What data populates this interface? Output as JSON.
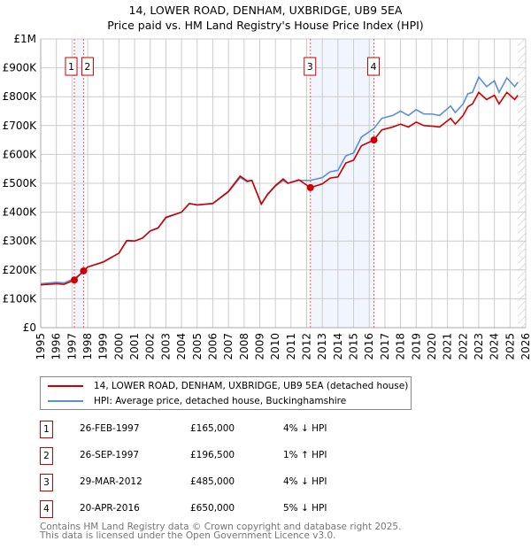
{
  "chart_data": {
    "type": "line",
    "title": "14, LOWER ROAD, DENHAM, UXBRIDGE, UB9 5EA",
    "subtitle": "Price paid vs. HM Land Registry's House Price Index (HPI)",
    "xlim": [
      1995,
      2026
    ],
    "ylim": [
      0,
      1000000
    ],
    "x_ticks": [
      "1995",
      "1996",
      "1997",
      "1998",
      "1999",
      "2000",
      "2001",
      "2002",
      "2003",
      "2004",
      "2005",
      "2006",
      "2007",
      "2008",
      "2009",
      "2010",
      "2011",
      "2012",
      "2013",
      "2014",
      "2015",
      "2016",
      "2017",
      "2018",
      "2019",
      "2020",
      "2021",
      "2022",
      "2023",
      "2024",
      "2025",
      "2026"
    ],
    "y_ticks": [
      {
        "v": 0,
        "label": "£0"
      },
      {
        "v": 100000,
        "label": "£100K"
      },
      {
        "v": 200000,
        "label": "£200K"
      },
      {
        "v": 300000,
        "label": "£300K"
      },
      {
        "v": 400000,
        "label": "£400K"
      },
      {
        "v": 500000,
        "label": "£500K"
      },
      {
        "v": 600000,
        "label": "£600K"
      },
      {
        "v": 700000,
        "label": "£700K"
      },
      {
        "v": 800000,
        "label": "£800K"
      },
      {
        "v": 900000,
        "label": "£900K"
      },
      {
        "v": 1000000,
        "label": "£1M"
      }
    ],
    "x": [
      1995,
      1996,
      1996.5,
      1997.15,
      1997.74,
      1998,
      1999,
      2000,
      2000.5,
      2001,
      2001.5,
      2002,
      2002.5,
      2003,
      2004,
      2004.5,
      2005,
      2006,
      2007,
      2007.75,
      2008.2,
      2008.5,
      2009.1,
      2009.5,
      2010,
      2010.5,
      2010.8,
      2011.5,
      2012.24,
      2013,
      2013.5,
      2014,
      2014.5,
      2015,
      2015.5,
      2016.3,
      2016.8,
      2017.5,
      2018,
      2018.5,
      2019,
      2019.5,
      2020,
      2020.5,
      2021.2,
      2021.5,
      2022,
      2022.3,
      2022.6,
      2023,
      2023.5,
      2024,
      2024.3,
      2024.8,
      2025.3,
      2025.5
    ],
    "series": [
      {
        "name": "14, LOWER ROAD, DENHAM, UXBRIDGE, UB9 5EA (detached house)",
        "color": "#cc0000",
        "values": [
          148,
          152,
          150,
          165,
          196.5,
          210,
          227,
          258,
          302,
          300,
          310,
          335,
          345,
          382,
          400,
          430,
          425,
          430,
          472,
          525,
          508,
          510,
          428,
          462,
          492,
          515,
          500,
          512,
          485,
          498,
          518,
          522,
          570,
          580,
          630,
          650,
          685,
          695,
          705,
          695,
          712,
          700,
          698,
          695,
          725,
          705,
          735,
          765,
          775,
          815,
          790,
          805,
          775,
          815,
          790,
          805
        ]
      },
      {
        "name": "HPI: Average price, detached house, Buckinghamshire",
        "color": "#5b8fd6",
        "values": [
          152,
          157,
          155,
          170,
          194,
          210,
          228,
          258,
          300,
          300,
          310,
          335,
          345,
          380,
          400,
          430,
          425,
          430,
          470,
          520,
          505,
          510,
          428,
          460,
          490,
          510,
          500,
          510,
          510,
          520,
          540,
          545,
          595,
          605,
          660,
          690,
          725,
          735,
          750,
          735,
          755,
          740,
          740,
          735,
          768,
          745,
          775,
          810,
          815,
          868,
          835,
          855,
          815,
          865,
          835,
          850
        ]
      }
    ],
    "value_unit": "£K",
    "sales": [
      {
        "n": "1",
        "x": 1997.15,
        "y": 165,
        "date": "26-FEB-1997",
        "price": "£165,000",
        "hpi": "4% ↓ HPI"
      },
      {
        "n": "2",
        "x": 1997.74,
        "y": 196.5,
        "date": "26-SEP-1997",
        "price": "£196,500",
        "hpi": "1% ↑ HPI"
      },
      {
        "n": "3",
        "x": 2012.24,
        "y": 485,
        "date": "29-MAR-2012",
        "price": "£485,000",
        "hpi": "4% ↓ HPI"
      },
      {
        "n": "4",
        "x": 2016.3,
        "y": 650,
        "date": "20-APR-2016",
        "price": "£650,000",
        "hpi": "5% ↓ HPI"
      }
    ],
    "forecast_from": 2025.5
  },
  "footer": {
    "line1": "Contains HM Land Registry data © Crown copyright and database right 2025.",
    "line2": "This data is licensed under the Open Government Licence v3.0."
  }
}
